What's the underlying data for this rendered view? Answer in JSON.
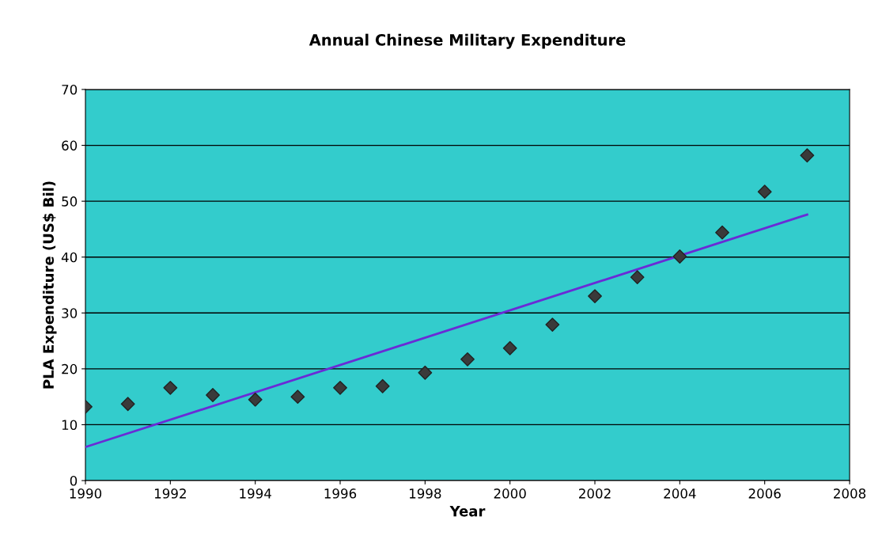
{
  "chart_data": {
    "type": "scatter",
    "title": "Annual Chinese Military Expenditure",
    "xlabel": "Year",
    "ylabel": "PLA Expenditure (US$ Bil)",
    "x": [
      1990,
      1991,
      1992,
      1993,
      1994,
      1995,
      1996,
      1997,
      1998,
      1999,
      2000,
      2001,
      2002,
      2003,
      2004,
      2005,
      2006,
      2007
    ],
    "series": [
      {
        "color": "#3a3a3a",
        "marker": "diamond",
        "values": [
          13.2,
          13.7,
          16.6,
          15.3,
          14.5,
          15.0,
          16.6,
          16.9,
          19.3,
          21.7,
          23.7,
          27.9,
          33.0,
          36.4,
          40.1,
          44.4,
          51.7,
          58.2
        ]
      },
      {
        "type": "line",
        "color": "#6a2bd6",
        "marker": "none",
        "line_style": "solid",
        "x": [
          1990,
          2007
        ],
        "values": [
          6.0,
          47.6
        ]
      }
    ],
    "xlim": [
      1990,
      2008
    ],
    "xticks": [
      1990,
      1992,
      1994,
      1996,
      1998,
      2000,
      2002,
      2004,
      2006,
      2008
    ],
    "ylim": [
      0,
      70
    ],
    "yticks": [
      0,
      10,
      20,
      30,
      40,
      50,
      60,
      70
    ],
    "grid": "y",
    "legend": false
  }
}
